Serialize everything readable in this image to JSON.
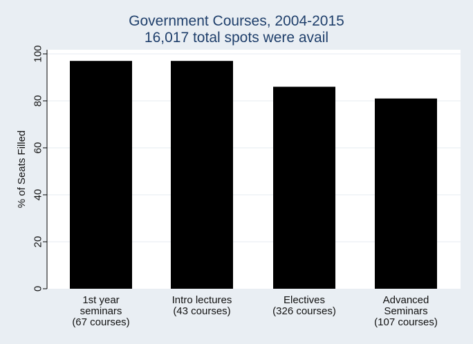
{
  "chart_data": {
    "type": "bar",
    "title": [
      "Government Courses, 2004-2015",
      "16,017 total spots were avail"
    ],
    "ylabel": "% of Seats Filled",
    "xlabel": "",
    "ylim": [
      0,
      100
    ],
    "yticks": [
      0,
      20,
      40,
      60,
      80,
      100
    ],
    "categories": [
      [
        "1st year",
        "seminars",
        "(67 courses)"
      ],
      [
        "Intro lectures",
        "(43 courses)"
      ],
      [
        "Electives",
        "(326 courses)"
      ],
      [
        "Advanced",
        "Seminars",
        "(107 courses)"
      ]
    ],
    "values": [
      97,
      97,
      86,
      81
    ],
    "grid": true,
    "colors": {
      "background": "#e9eef3",
      "plot": "#ffffff",
      "bar": "#000000",
      "title": "#1f3f6b",
      "grid": "#e6ebf0"
    }
  }
}
